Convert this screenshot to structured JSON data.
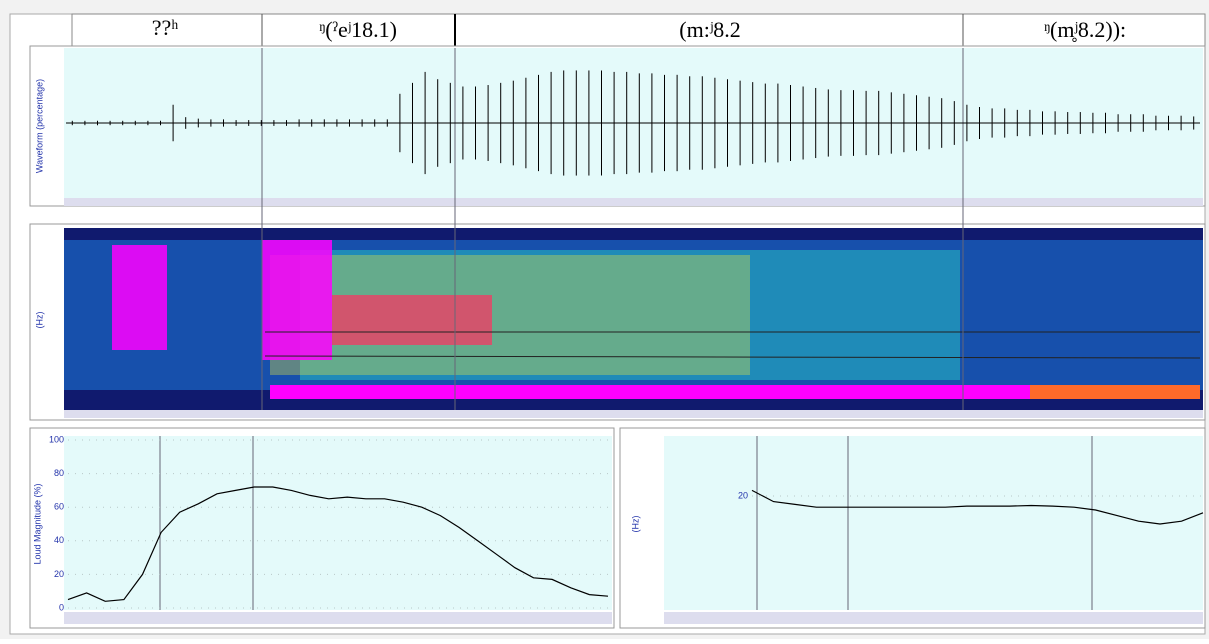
{
  "segments": [
    {
      "label": "??ʰ"
    },
    {
      "label": "ᵑ(ˀeʲ18.1)"
    },
    {
      "label": "(m:ʲ8.2"
    },
    {
      "label": "ᵑ(m̥ʲ8.2)):"
    }
  ],
  "waveform": {
    "type": "waveform",
    "ylabel": "Waveform (percentage)",
    "ylim": [
      -100,
      100
    ],
    "values": [
      3,
      3,
      3,
      3,
      3,
      3,
      3,
      3,
      25,
      8,
      6,
      5,
      5,
      4,
      4,
      4,
      4,
      4,
      5,
      5,
      5,
      5,
      5,
      5,
      5,
      5,
      40,
      55,
      70,
      60,
      55,
      50,
      50,
      52,
      55,
      58,
      62,
      66,
      70,
      72,
      72,
      72,
      72,
      70,
      70,
      68,
      68,
      66,
      66,
      64,
      64,
      62,
      60,
      58,
      56,
      54,
      54,
      52,
      50,
      48,
      46,
      45,
      45,
      44,
      44,
      42,
      40,
      38,
      36,
      34,
      30,
      25,
      22,
      20,
      20,
      18,
      18,
      16,
      16,
      15,
      15,
      14,
      14,
      12,
      12,
      12,
      10,
      10,
      10,
      9
    ]
  },
  "spectrogram": {
    "ylabel": "(Hz)"
  },
  "loudness": {
    "type": "line",
    "ylabel": "Loud Magnitude (%)",
    "ylim": [
      0,
      100
    ],
    "yticks": [
      0,
      20,
      40,
      60,
      80,
      100
    ],
    "color": "#000000",
    "values": [
      5,
      9,
      4,
      5,
      20,
      45,
      57,
      62,
      68,
      70,
      72,
      72,
      70,
      67,
      65,
      66,
      65,
      65,
      63,
      60,
      55,
      48,
      40,
      32,
      24,
      18,
      17,
      12,
      8,
      7
    ]
  },
  "pitch": {
    "type": "line",
    "ylabel": "(Hz)",
    "ylim": [
      0,
      30
    ],
    "yticks": [
      20
    ],
    "color": "#000000",
    "values": [
      21,
      19,
      18.5,
      18,
      18,
      18,
      18,
      18,
      18,
      18,
      18.2,
      18.2,
      18.2,
      18.3,
      18.2,
      18,
      17.5,
      16.5,
      15.5,
      15,
      15.5,
      17
    ]
  }
}
